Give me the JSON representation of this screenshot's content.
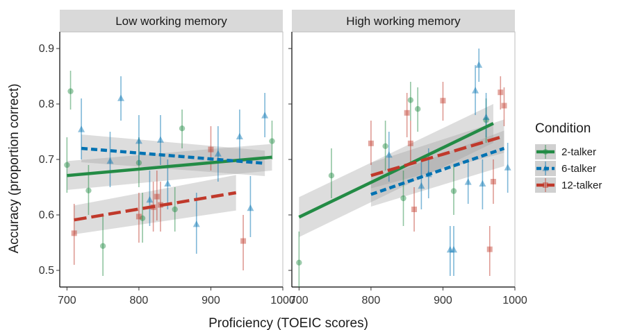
{
  "chart_data": {
    "type": "scatter",
    "xlabel": "Proficiency (TOEIC scores)",
    "ylabel": "Accuracy (proportion correct)",
    "legend": {
      "title": "Condition",
      "position": "right",
      "entries": [
        {
          "name": "2-talker",
          "color": "#238b45",
          "dash": "solid"
        },
        {
          "name": "6-talker",
          "color": "#0072b2",
          "dash": "dashed"
        },
        {
          "name": "12-talker",
          "color": "#c0392b",
          "dash": "longdash"
        }
      ]
    },
    "marker_shapes": {
      "2-talker": "circle",
      "6-talker": "triangle",
      "12-talker": "square"
    },
    "grid": false,
    "facets": [
      {
        "title": "Low working memory",
        "xlim": [
          690,
          1000
        ],
        "ylim": [
          0.47,
          0.93
        ],
        "xticks": [
          700,
          800,
          900,
          1000
        ],
        "xtick_labels": [
          "700",
          "800",
          "900",
          "1000"
        ],
        "yticks": [
          0.5,
          0.6,
          0.7,
          0.8,
          0.9
        ],
        "ytick_labels": [
          "0.5",
          "0.6",
          "0.7",
          "0.8",
          "0.9"
        ],
        "series": [
          {
            "name": "2-talker",
            "points": [
              {
                "x": 700,
                "y": 0.69,
                "lo": 0.64,
                "hi": 0.74
              },
              {
                "x": 705,
                "y": 0.823,
                "lo": 0.79,
                "hi": 0.86
              },
              {
                "x": 730,
                "y": 0.644,
                "lo": 0.6,
                "hi": 0.69
              },
              {
                "x": 750,
                "y": 0.544,
                "lo": 0.49,
                "hi": 0.6
              },
              {
                "x": 800,
                "y": 0.694,
                "lo": 0.65,
                "hi": 0.74
              },
              {
                "x": 805,
                "y": 0.594,
                "lo": 0.55,
                "hi": 0.64
              },
              {
                "x": 850,
                "y": 0.61,
                "lo": 0.57,
                "hi": 0.65
              },
              {
                "x": 860,
                "y": 0.756,
                "lo": 0.72,
                "hi": 0.79
              },
              {
                "x": 985,
                "y": 0.733,
                "lo": 0.7,
                "hi": 0.77
              }
            ],
            "fit": {
              "x": [
                700,
                985
              ],
              "y": [
                0.671,
                0.704
              ],
              "ci_lo": [
                0.645,
                0.68
              ],
              "ci_hi": [
                0.697,
                0.728
              ]
            }
          },
          {
            "name": "6-talker",
            "points": [
              {
                "x": 720,
                "y": 0.754,
                "lo": 0.7,
                "hi": 0.81
              },
              {
                "x": 760,
                "y": 0.697,
                "lo": 0.65,
                "hi": 0.75
              },
              {
                "x": 775,
                "y": 0.81,
                "lo": 0.77,
                "hi": 0.85
              },
              {
                "x": 800,
                "y": 0.733,
                "lo": 0.69,
                "hi": 0.78
              },
              {
                "x": 815,
                "y": 0.627,
                "lo": 0.58,
                "hi": 0.68
              },
              {
                "x": 830,
                "y": 0.735,
                "lo": 0.69,
                "hi": 0.78
              },
              {
                "x": 840,
                "y": 0.656,
                "lo": 0.61,
                "hi": 0.7
              },
              {
                "x": 880,
                "y": 0.583,
                "lo": 0.53,
                "hi": 0.64
              },
              {
                "x": 910,
                "y": 0.71,
                "lo": 0.66,
                "hi": 0.76
              },
              {
                "x": 940,
                "y": 0.741,
                "lo": 0.7,
                "hi": 0.79
              },
              {
                "x": 955,
                "y": 0.612,
                "lo": 0.56,
                "hi": 0.67
              },
              {
                "x": 975,
                "y": 0.779,
                "lo": 0.74,
                "hi": 0.82
              }
            ],
            "fit": {
              "x": [
                720,
                975
              ],
              "y": [
                0.72,
                0.693
              ],
              "ci_lo": [
                0.695,
                0.67
              ],
              "ci_hi": [
                0.745,
                0.716
              ]
            }
          },
          {
            "name": "12-talker",
            "points": [
              {
                "x": 710,
                "y": 0.567,
                "lo": 0.51,
                "hi": 0.62
              },
              {
                "x": 800,
                "y": 0.597,
                "lo": 0.55,
                "hi": 0.64
              },
              {
                "x": 820,
                "y": 0.614,
                "lo": 0.57,
                "hi": 0.66
              },
              {
                "x": 825,
                "y": 0.633,
                "lo": 0.59,
                "hi": 0.68
              },
              {
                "x": 830,
                "y": 0.618,
                "lo": 0.57,
                "hi": 0.66
              },
              {
                "x": 900,
                "y": 0.718,
                "lo": 0.68,
                "hi": 0.76
              },
              {
                "x": 945,
                "y": 0.553,
                "lo": 0.5,
                "hi": 0.6
              }
            ],
            "fit": {
              "x": [
                710,
                935
              ],
              "y": [
                0.591,
                0.64
              ],
              "ci_lo": [
                0.565,
                0.608
              ],
              "ci_hi": [
                0.617,
                0.672
              ]
            }
          }
        ]
      },
      {
        "title": "High working memory",
        "xlim": [
          690,
          1000
        ],
        "ylim": [
          0.47,
          0.93
        ],
        "xticks": [
          700,
          800,
          900,
          1000
        ],
        "xtick_labels": [
          "700",
          "800",
          "900",
          "1000"
        ],
        "yticks": [
          0.5,
          0.6,
          0.7,
          0.8,
          0.9
        ],
        "ytick_labels": [],
        "series": [
          {
            "name": "2-talker",
            "points": [
              {
                "x": 700,
                "y": 0.514,
                "lo": 0.46,
                "hi": 0.57
              },
              {
                "x": 745,
                "y": 0.671,
                "lo": 0.63,
                "hi": 0.72
              },
              {
                "x": 820,
                "y": 0.724,
                "lo": 0.68,
                "hi": 0.77
              },
              {
                "x": 845,
                "y": 0.63,
                "lo": 0.58,
                "hi": 0.68
              },
              {
                "x": 855,
                "y": 0.807,
                "lo": 0.77,
                "hi": 0.84
              },
              {
                "x": 865,
                "y": 0.791,
                "lo": 0.75,
                "hi": 0.83
              },
              {
                "x": 915,
                "y": 0.643,
                "lo": 0.6,
                "hi": 0.69
              },
              {
                "x": 960,
                "y": 0.771,
                "lo": 0.73,
                "hi": 0.81
              }
            ],
            "fit": {
              "x": [
                700,
                970
              ],
              "y": [
                0.596,
                0.765
              ],
              "ci_lo": [
                0.56,
                0.73
              ],
              "ci_hi": [
                0.632,
                0.8
              ]
            }
          },
          {
            "name": "6-talker",
            "points": [
              {
                "x": 825,
                "y": 0.708,
                "lo": 0.66,
                "hi": 0.75
              },
              {
                "x": 870,
                "y": 0.652,
                "lo": 0.61,
                "hi": 0.7
              },
              {
                "x": 880,
                "y": 0.673,
                "lo": 0.63,
                "hi": 0.72
              },
              {
                "x": 910,
                "y": 0.537,
                "lo": 0.49,
                "hi": 0.58
              },
              {
                "x": 915,
                "y": 0.537,
                "lo": 0.49,
                "hi": 0.58
              },
              {
                "x": 935,
                "y": 0.659,
                "lo": 0.62,
                "hi": 0.7
              },
              {
                "x": 945,
                "y": 0.824,
                "lo": 0.78,
                "hi": 0.87
              },
              {
                "x": 950,
                "y": 0.87,
                "lo": 0.84,
                "hi": 0.9
              },
              {
                "x": 955,
                "y": 0.656,
                "lo": 0.61,
                "hi": 0.7
              },
              {
                "x": 960,
                "y": 0.776,
                "lo": 0.74,
                "hi": 0.82
              },
              {
                "x": 990,
                "y": 0.685,
                "lo": 0.64,
                "hi": 0.73
              }
            ],
            "fit": {
              "x": [
                800,
                985
              ],
              "y": [
                0.637,
                0.72
              ],
              "ci_lo": [
                0.615,
                0.688
              ],
              "ci_hi": [
                0.66,
                0.752
              ]
            }
          },
          {
            "name": "12-talker",
            "points": [
              {
                "x": 800,
                "y": 0.729,
                "lo": 0.69,
                "hi": 0.77
              },
              {
                "x": 850,
                "y": 0.784,
                "lo": 0.74,
                "hi": 0.82
              },
              {
                "x": 855,
                "y": 0.729,
                "lo": 0.69,
                "hi": 0.77
              },
              {
                "x": 860,
                "y": 0.61,
                "lo": 0.57,
                "hi": 0.65
              },
              {
                "x": 900,
                "y": 0.806,
                "lo": 0.77,
                "hi": 0.84
              },
              {
                "x": 965,
                "y": 0.538,
                "lo": 0.49,
                "hi": 0.58
              },
              {
                "x": 980,
                "y": 0.821,
                "lo": 0.79,
                "hi": 0.85
              },
              {
                "x": 985,
                "y": 0.797,
                "lo": 0.76,
                "hi": 0.83
              },
              {
                "x": 970,
                "y": 0.66,
                "lo": 0.62,
                "hi": 0.7
              }
            ],
            "fit": {
              "x": [
                800,
                985
              ],
              "y": [
                0.671,
                0.742
              ],
              "ci_lo": [
                0.648,
                0.712
              ],
              "ci_hi": [
                0.694,
                0.772
              ]
            }
          }
        ]
      }
    ]
  }
}
